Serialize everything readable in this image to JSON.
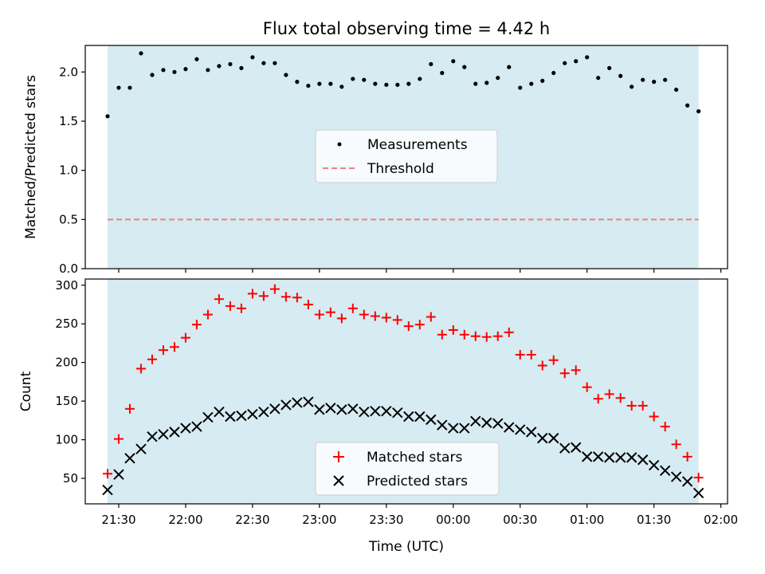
{
  "title": "Flux total observing time = 4.42 h",
  "colors": {
    "observing_band": "#add8e6",
    "measurements": "#000000",
    "threshold": "#f08080",
    "matched": "#ff0000",
    "predicted": "#000000"
  },
  "chart_data": [
    {
      "type": "scatter",
      "title": "Flux total observing time = 4.42 h",
      "xlabel": "",
      "ylabel": "Matched/Predicted stars",
      "ylim": [
        0,
        2.27
      ],
      "xlim": [
        "21:15",
        "02:03"
      ],
      "x_ticks": [
        "21:30",
        "22:00",
        "22:30",
        "23:00",
        "23:30",
        "00:00",
        "00:30",
        "01:00",
        "01:30",
        "02:00"
      ],
      "y_ticks": [
        "0.0",
        "0.5",
        "1.0",
        "1.5",
        "2.0"
      ],
      "observing_span": [
        "21:25",
        "01:50"
      ],
      "legend": {
        "position": "center",
        "entries": [
          "Measurements",
          "Threshold"
        ]
      },
      "threshold": {
        "name": "Threshold",
        "value": 0.5
      },
      "series": [
        {
          "name": "Measurements",
          "x": [
            "21:25",
            "21:30",
            "21:35",
            "21:40",
            "21:45",
            "21:50",
            "21:55",
            "22:00",
            "22:05",
            "22:10",
            "22:15",
            "22:20",
            "22:25",
            "22:30",
            "22:35",
            "22:40",
            "22:45",
            "22:50",
            "22:55",
            "23:00",
            "23:05",
            "23:10",
            "23:15",
            "23:20",
            "23:25",
            "23:30",
            "23:35",
            "23:40",
            "23:45",
            "23:50",
            "23:55",
            "00:00",
            "00:05",
            "00:10",
            "00:15",
            "00:20",
            "00:25",
            "00:30",
            "00:35",
            "00:40",
            "00:45",
            "00:50",
            "00:55",
            "01:00",
            "01:05",
            "01:10",
            "01:15",
            "01:20",
            "01:25",
            "01:30",
            "01:35",
            "01:40",
            "01:45",
            "01:50"
          ],
          "y": [
            1.55,
            1.84,
            1.84,
            2.19,
            1.97,
            2.02,
            2.0,
            2.03,
            2.13,
            2.02,
            2.06,
            2.08,
            2.04,
            2.15,
            2.09,
            2.09,
            1.97,
            1.9,
            1.86,
            1.88,
            1.88,
            1.85,
            1.93,
            1.92,
            1.88,
            1.87,
            1.87,
            1.88,
            1.93,
            2.08,
            1.99,
            2.11,
            2.05,
            1.88,
            1.89,
            1.94,
            2.05,
            1.84,
            1.88,
            1.91,
            1.99,
            2.09,
            2.11,
            2.15,
            1.94,
            2.04,
            1.96,
            1.85,
            1.92,
            1.9,
            1.92,
            1.82,
            1.66,
            1.6
          ]
        }
      ]
    },
    {
      "type": "scatter",
      "title": "",
      "xlabel": "Time (UTC)",
      "ylabel": "Count",
      "ylim": [
        17,
        308
      ],
      "xlim": [
        "21:15",
        "02:03"
      ],
      "x_ticks": [
        "21:30",
        "22:00",
        "22:30",
        "23:00",
        "23:30",
        "00:00",
        "00:30",
        "01:00",
        "01:30",
        "02:00"
      ],
      "y_ticks": [
        "50",
        "100",
        "150",
        "200",
        "250",
        "300"
      ],
      "observing_span": [
        "21:25",
        "01:50"
      ],
      "legend": {
        "position": "lower center",
        "entries": [
          "Matched stars",
          "Predicted stars"
        ]
      },
      "series": [
        {
          "name": "Matched stars",
          "marker": "+",
          "x": [
            "21:25",
            "21:30",
            "21:35",
            "21:40",
            "21:45",
            "21:50",
            "21:55",
            "22:00",
            "22:05",
            "22:10",
            "22:15",
            "22:20",
            "22:25",
            "22:30",
            "22:35",
            "22:40",
            "22:45",
            "22:50",
            "22:55",
            "23:00",
            "23:05",
            "23:10",
            "23:15",
            "23:20",
            "23:25",
            "23:30",
            "23:35",
            "23:40",
            "23:45",
            "23:50",
            "23:55",
            "00:00",
            "00:05",
            "00:10",
            "00:15",
            "00:20",
            "00:25",
            "00:30",
            "00:35",
            "00:40",
            "00:45",
            "00:50",
            "00:55",
            "01:00",
            "01:05",
            "01:10",
            "01:15",
            "01:20",
            "01:25",
            "01:30",
            "01:35",
            "01:40",
            "01:45",
            "01:50"
          ],
          "y": [
            56,
            101,
            140,
            192,
            204,
            216,
            220,
            232,
            249,
            262,
            282,
            273,
            270,
            289,
            286,
            295,
            285,
            284,
            275,
            262,
            265,
            257,
            270,
            262,
            260,
            258,
            255,
            247,
            249,
            259,
            236,
            242,
            236,
            234,
            233,
            234,
            239,
            210,
            210,
            196,
            203,
            186,
            190,
            168,
            153,
            159,
            154,
            144,
            144,
            130,
            117,
            94,
            78,
            51
          ]
        },
        {
          "name": "Predicted stars",
          "marker": "x",
          "x": [
            "21:25",
            "21:30",
            "21:35",
            "21:40",
            "21:45",
            "21:50",
            "21:55",
            "22:00",
            "22:05",
            "22:10",
            "22:15",
            "22:20",
            "22:25",
            "22:30",
            "22:35",
            "22:40",
            "22:45",
            "22:50",
            "22:55",
            "23:00",
            "23:05",
            "23:10",
            "23:15",
            "23:20",
            "23:25",
            "23:30",
            "23:35",
            "23:40",
            "23:45",
            "23:50",
            "23:55",
            "00:00",
            "00:05",
            "00:10",
            "00:15",
            "00:20",
            "00:25",
            "00:30",
            "00:35",
            "00:40",
            "00:45",
            "00:50",
            "00:55",
            "01:00",
            "01:05",
            "01:10",
            "01:15",
            "01:20",
            "01:25",
            "01:30",
            "01:35",
            "01:40",
            "01:45",
            "01:50"
          ],
          "y": [
            35,
            55,
            76,
            88,
            104,
            107,
            110,
            115,
            117,
            129,
            136,
            130,
            131,
            133,
            136,
            140,
            145,
            148,
            149,
            139,
            141,
            139,
            140,
            136,
            137,
            137,
            135,
            130,
            130,
            126,
            119,
            115,
            115,
            124,
            122,
            121,
            116,
            113,
            110,
            102,
            102,
            89,
            90,
            78,
            78,
            77,
            77,
            77,
            74,
            67,
            60,
            52,
            46,
            31
          ]
        }
      ]
    }
  ]
}
